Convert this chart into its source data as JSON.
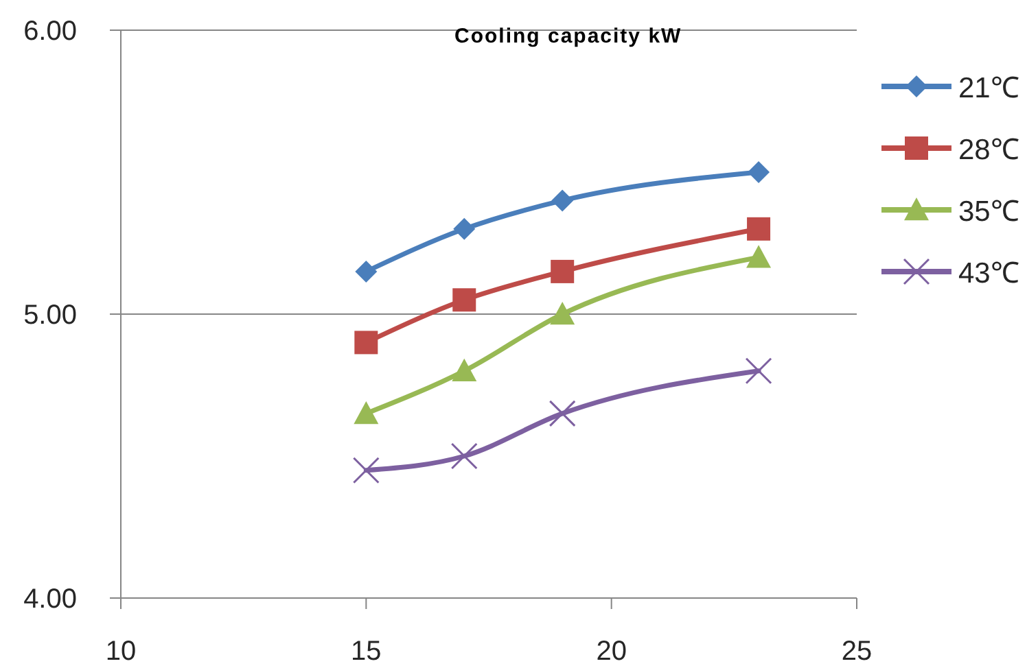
{
  "chart_data": {
    "type": "line",
    "title": "Cooling capacity kW",
    "x": [
      15,
      17,
      19,
      23
    ],
    "series": [
      {
        "name": "21℃",
        "color": "#4a7ebb",
        "marker": "diamond",
        "values": [
          5.15,
          5.3,
          5.4,
          5.5
        ]
      },
      {
        "name": "28℃",
        "color": "#be4b48",
        "marker": "square",
        "values": [
          4.9,
          5.05,
          5.15,
          5.3
        ]
      },
      {
        "name": "35℃",
        "color": "#98b954",
        "marker": "triangle",
        "values": [
          4.65,
          4.8,
          5.0,
          5.2
        ]
      },
      {
        "name": "43℃",
        "color": "#7d60a0",
        "marker": "cross",
        "values": [
          4.45,
          4.5,
          4.65,
          4.8
        ]
      }
    ],
    "xlim": [
      10,
      25
    ],
    "xticks": [
      10,
      15,
      20,
      25
    ],
    "ylim": [
      4,
      6
    ],
    "yticks": [
      {
        "value": 4,
        "label": "4.00"
      },
      {
        "value": 5,
        "label": "5.00"
      },
      {
        "value": 6,
        "label": "6.00"
      }
    ],
    "grid": "y",
    "legend": "top right"
  }
}
